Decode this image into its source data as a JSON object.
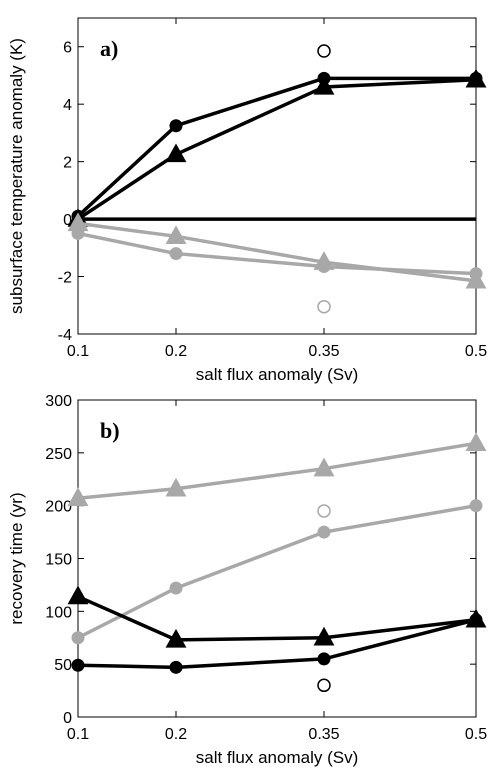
{
  "chart_data": [
    {
      "type": "line",
      "panel_label": "a)",
      "xlabel": "salt flux anomaly (Sv)",
      "ylabel": "subsurface temperature anomaly (K)",
      "xlim": [
        0.1,
        0.5
      ],
      "ylim": [
        -4,
        7
      ],
      "x_ticks": [
        "0.1",
        "0.2",
        "0.35",
        "0.5"
      ],
      "y_ticks": [
        -4,
        -2,
        0,
        2,
        4,
        6
      ],
      "x": [
        0.1,
        0.2,
        0.35,
        0.5
      ],
      "hline": 0,
      "series": [
        {
          "marker": "circle",
          "color": "#000000",
          "values": [
            0.1,
            3.25,
            4.9,
            4.9
          ]
        },
        {
          "marker": "triangle",
          "color": "#000000",
          "values": [
            0.0,
            2.25,
            4.6,
            4.85
          ]
        },
        {
          "marker": "circle",
          "color": "#a8a8a8",
          "values": [
            -0.5,
            -1.2,
            -1.65,
            -1.9
          ]
        },
        {
          "marker": "triangle",
          "color": "#a8a8a8",
          "values": [
            -0.15,
            -0.6,
            -1.5,
            -2.15
          ]
        }
      ],
      "open_points": [
        {
          "x": 0.35,
          "y": 5.85,
          "color": "#000000"
        },
        {
          "x": 0.35,
          "y": -3.05,
          "color": "#a8a8a8"
        }
      ]
    },
    {
      "type": "line",
      "panel_label": "b)",
      "xlabel": "salt flux anomaly (Sv)",
      "ylabel": "recovery time (yr)",
      "xlim": [
        0.1,
        0.5
      ],
      "ylim": [
        0,
        300
      ],
      "x_ticks": [
        "0.1",
        "0.2",
        "0.35",
        "0.5"
      ],
      "y_ticks": [
        0,
        50,
        100,
        150,
        200,
        250,
        300
      ],
      "x": [
        0.1,
        0.2,
        0.35,
        0.5
      ],
      "series": [
        {
          "marker": "triangle",
          "color": "#a8a8a8",
          "values": [
            207,
            216,
            235,
            259
          ]
        },
        {
          "marker": "circle",
          "color": "#a8a8a8",
          "values": [
            75,
            122,
            175,
            200
          ]
        },
        {
          "marker": "triangle",
          "color": "#000000",
          "values": [
            114,
            73,
            75,
            92
          ]
        },
        {
          "marker": "circle",
          "color": "#000000",
          "values": [
            49,
            47,
            55,
            92
          ]
        }
      ],
      "open_points": [
        {
          "x": 0.35,
          "y": 195,
          "color": "#a8a8a8"
        },
        {
          "x": 0.35,
          "y": 30,
          "color": "#000000"
        }
      ]
    }
  ]
}
